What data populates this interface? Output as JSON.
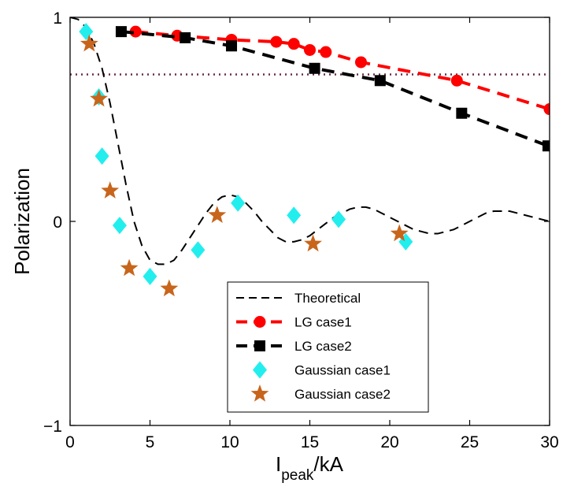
{
  "chart_data": {
    "type": "line",
    "title": "",
    "xlabel": {
      "main": "I",
      "sub": "peak",
      "suffix": "/kA"
    },
    "ylabel": "Polarization",
    "xlim": [
      0,
      30
    ],
    "ylim": [
      -1,
      1
    ],
    "xticks": [
      0,
      5,
      10,
      15,
      20,
      25,
      30
    ],
    "xtick_labels": [
      "0",
      "5",
      "10",
      "15",
      "20",
      "25",
      "30"
    ],
    "yticks": [
      -1,
      0,
      1
    ],
    "ytick_labels": [
      "−1",
      "0",
      "1"
    ],
    "grid": false,
    "legend_position": "bottom-center",
    "reference_line": {
      "y": 0.72,
      "style": "dotted",
      "color": "#6b2a4a"
    },
    "series": [
      {
        "name": "Theoretical",
        "kind": "curve",
        "color": "#000000",
        "line": "dashed",
        "marker": "none",
        "x": [
          0,
          0.5,
          1,
          1.5,
          2,
          2.5,
          3,
          3.5,
          4,
          4.5,
          5,
          5.5,
          6,
          6.5,
          7,
          7.5,
          8,
          8.5,
          9,
          9.5,
          10,
          10.5,
          11,
          11.5,
          12,
          12.5,
          13,
          13.5,
          14,
          14.5,
          15,
          15.5,
          16,
          16.5,
          17,
          17.5,
          18,
          18.5,
          19,
          19.5,
          20,
          20.5,
          21,
          21.5,
          22,
          22.5,
          23,
          23.5,
          24,
          24.5,
          25,
          25.5,
          26,
          26.5,
          27,
          27.5,
          28,
          28.5,
          29,
          29.5,
          30
        ],
        "y": [
          1.0,
          0.99,
          0.95,
          0.87,
          0.75,
          0.58,
          0.38,
          0.18,
          0.0,
          -0.12,
          -0.19,
          -0.21,
          -0.21,
          -0.19,
          -0.14,
          -0.08,
          -0.02,
          0.04,
          0.09,
          0.12,
          0.13,
          0.12,
          0.09,
          0.05,
          0.0,
          -0.04,
          -0.08,
          -0.1,
          -0.1,
          -0.09,
          -0.07,
          -0.04,
          -0.01,
          0.02,
          0.04,
          0.06,
          0.07,
          0.07,
          0.06,
          0.04,
          0.02,
          0.0,
          -0.02,
          -0.04,
          -0.05,
          -0.06,
          -0.06,
          -0.05,
          -0.04,
          -0.02,
          0.0,
          0.02,
          0.04,
          0.05,
          0.05,
          0.05,
          0.04,
          0.03,
          0.02,
          0.01,
          0.0
        ]
      },
      {
        "name": "LG case1",
        "kind": "marker-line",
        "color": "#ff0000",
        "line": "dashed",
        "marker": "circle",
        "x": [
          4.1,
          6.7,
          10.1,
          12.9,
          14.0,
          15.0,
          16.0,
          18.2,
          24.2,
          30.0
        ],
        "y": [
          0.93,
          0.91,
          0.89,
          0.88,
          0.87,
          0.84,
          0.83,
          0.78,
          0.69,
          0.55
        ]
      },
      {
        "name": "LG case2",
        "kind": "marker-line",
        "color": "#000000",
        "line": "dashed",
        "marker": "square",
        "x": [
          3.2,
          7.2,
          10.1,
          15.3,
          19.4,
          24.5,
          29.9
        ],
        "y": [
          0.93,
          0.9,
          0.86,
          0.75,
          0.69,
          0.53,
          0.37
        ]
      },
      {
        "name": "Gaussian case1",
        "kind": "scatter",
        "color": "#22eeee",
        "marker": "diamond",
        "x": [
          1.0,
          1.8,
          2.0,
          3.1,
          5.0,
          8.0,
          10.5,
          14.0,
          16.8,
          21.0
        ],
        "y": [
          0.93,
          0.61,
          0.32,
          -0.02,
          -0.27,
          -0.14,
          0.09,
          0.03,
          0.01,
          -0.1
        ]
      },
      {
        "name": "Gaussian case2",
        "kind": "scatter",
        "color": "#c8651b",
        "marker": "star",
        "x": [
          1.2,
          1.8,
          2.5,
          3.7,
          6.2,
          9.2,
          15.2,
          20.6
        ],
        "y": [
          0.87,
          0.6,
          0.15,
          -0.23,
          -0.33,
          0.03,
          -0.11,
          -0.06
        ]
      }
    ]
  }
}
